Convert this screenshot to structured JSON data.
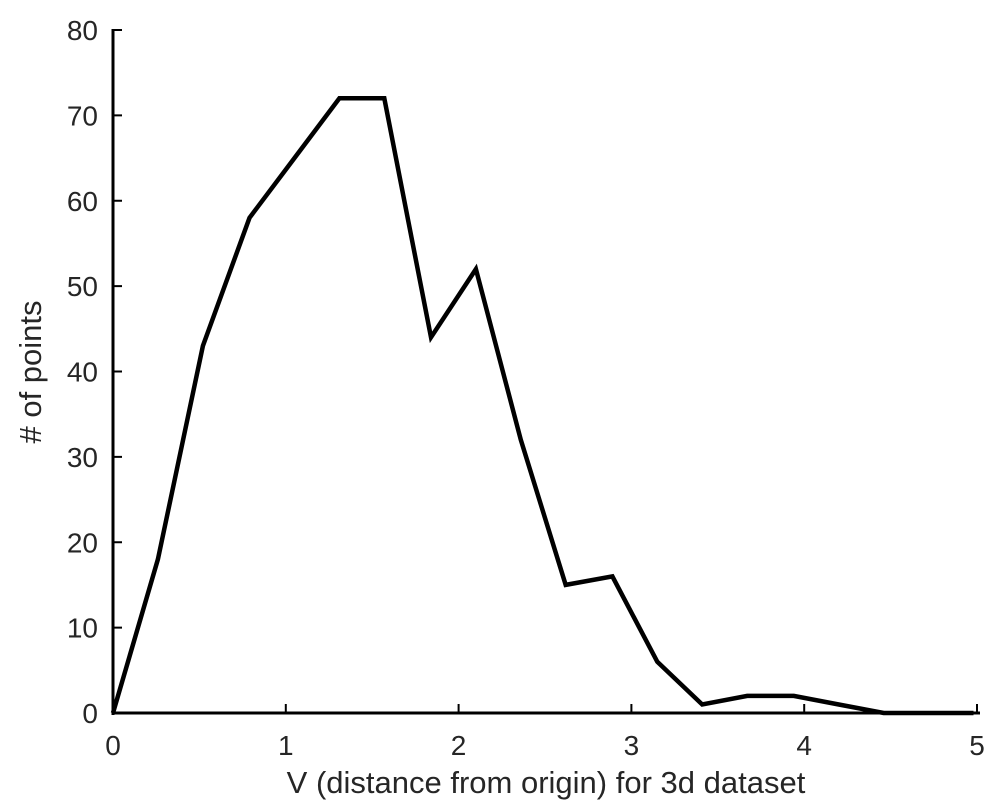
{
  "chart_data": {
    "type": "line",
    "title": "",
    "xlabel": "V (distance from origin) for 3d dataset",
    "ylabel": "# of points",
    "xlim": [
      0,
      5
    ],
    "ylim": [
      0,
      80
    ],
    "x_ticks": [
      "0",
      "1",
      "2",
      "3",
      "4",
      "5"
    ],
    "y_ticks": [
      "0",
      "10",
      "20",
      "30",
      "40",
      "50",
      "60",
      "70",
      "80"
    ],
    "grid": false,
    "legend": "none",
    "series": [
      {
        "color": "#000000",
        "x": [
          0,
          0.26,
          0.52,
          0.79,
          1.05,
          1.31,
          1.57,
          1.84,
          2.1,
          2.36,
          2.62,
          2.89,
          3.15,
          3.41,
          3.67,
          3.94,
          4.2,
          4.46,
          4.72,
          4.98
        ],
        "y": [
          0,
          18,
          43,
          58,
          65,
          72,
          72,
          44,
          52,
          32,
          15,
          16,
          6,
          1,
          2,
          2,
          1,
          0,
          0,
          0
        ]
      }
    ]
  }
}
